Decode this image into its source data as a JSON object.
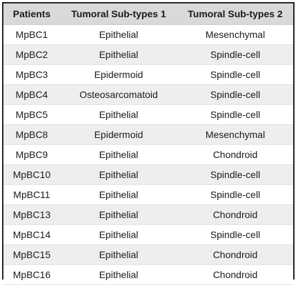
{
  "table": {
    "headers": [
      "Patients",
      "Tumoral Sub-types 1",
      "Tumoral Sub-types 2"
    ],
    "rows": [
      [
        "MpBC1",
        "Epithelial",
        "Mesenchymal"
      ],
      [
        "MpBC2",
        "Epithelial",
        "Spindle-cell"
      ],
      [
        "MpBC3",
        "Epidermoid",
        "Spindle-cell"
      ],
      [
        "MpBC4",
        "Osteosarcomatoid",
        "Spindle-cell"
      ],
      [
        "MpBC5",
        "Epithelial",
        "Spindle-cell"
      ],
      [
        "MpBC8",
        "Epidermoid",
        "Mesenchymal"
      ],
      [
        "MpBC9",
        "Epithelial",
        "Chondroid"
      ],
      [
        "MpBC10",
        "Epithelial",
        "Spindle-cell"
      ],
      [
        "MpBC11",
        "Epithelial",
        "Spindle-cell"
      ],
      [
        "MpBC13",
        "Epithelial",
        "Chondroid"
      ],
      [
        "MpBC14",
        "Epithelial",
        "Spindle-cell"
      ],
      [
        "MpBC15",
        "Epithelial",
        "Chondroid"
      ],
      [
        "MpBC16",
        "Epithelial",
        "Chondroid"
      ]
    ]
  }
}
